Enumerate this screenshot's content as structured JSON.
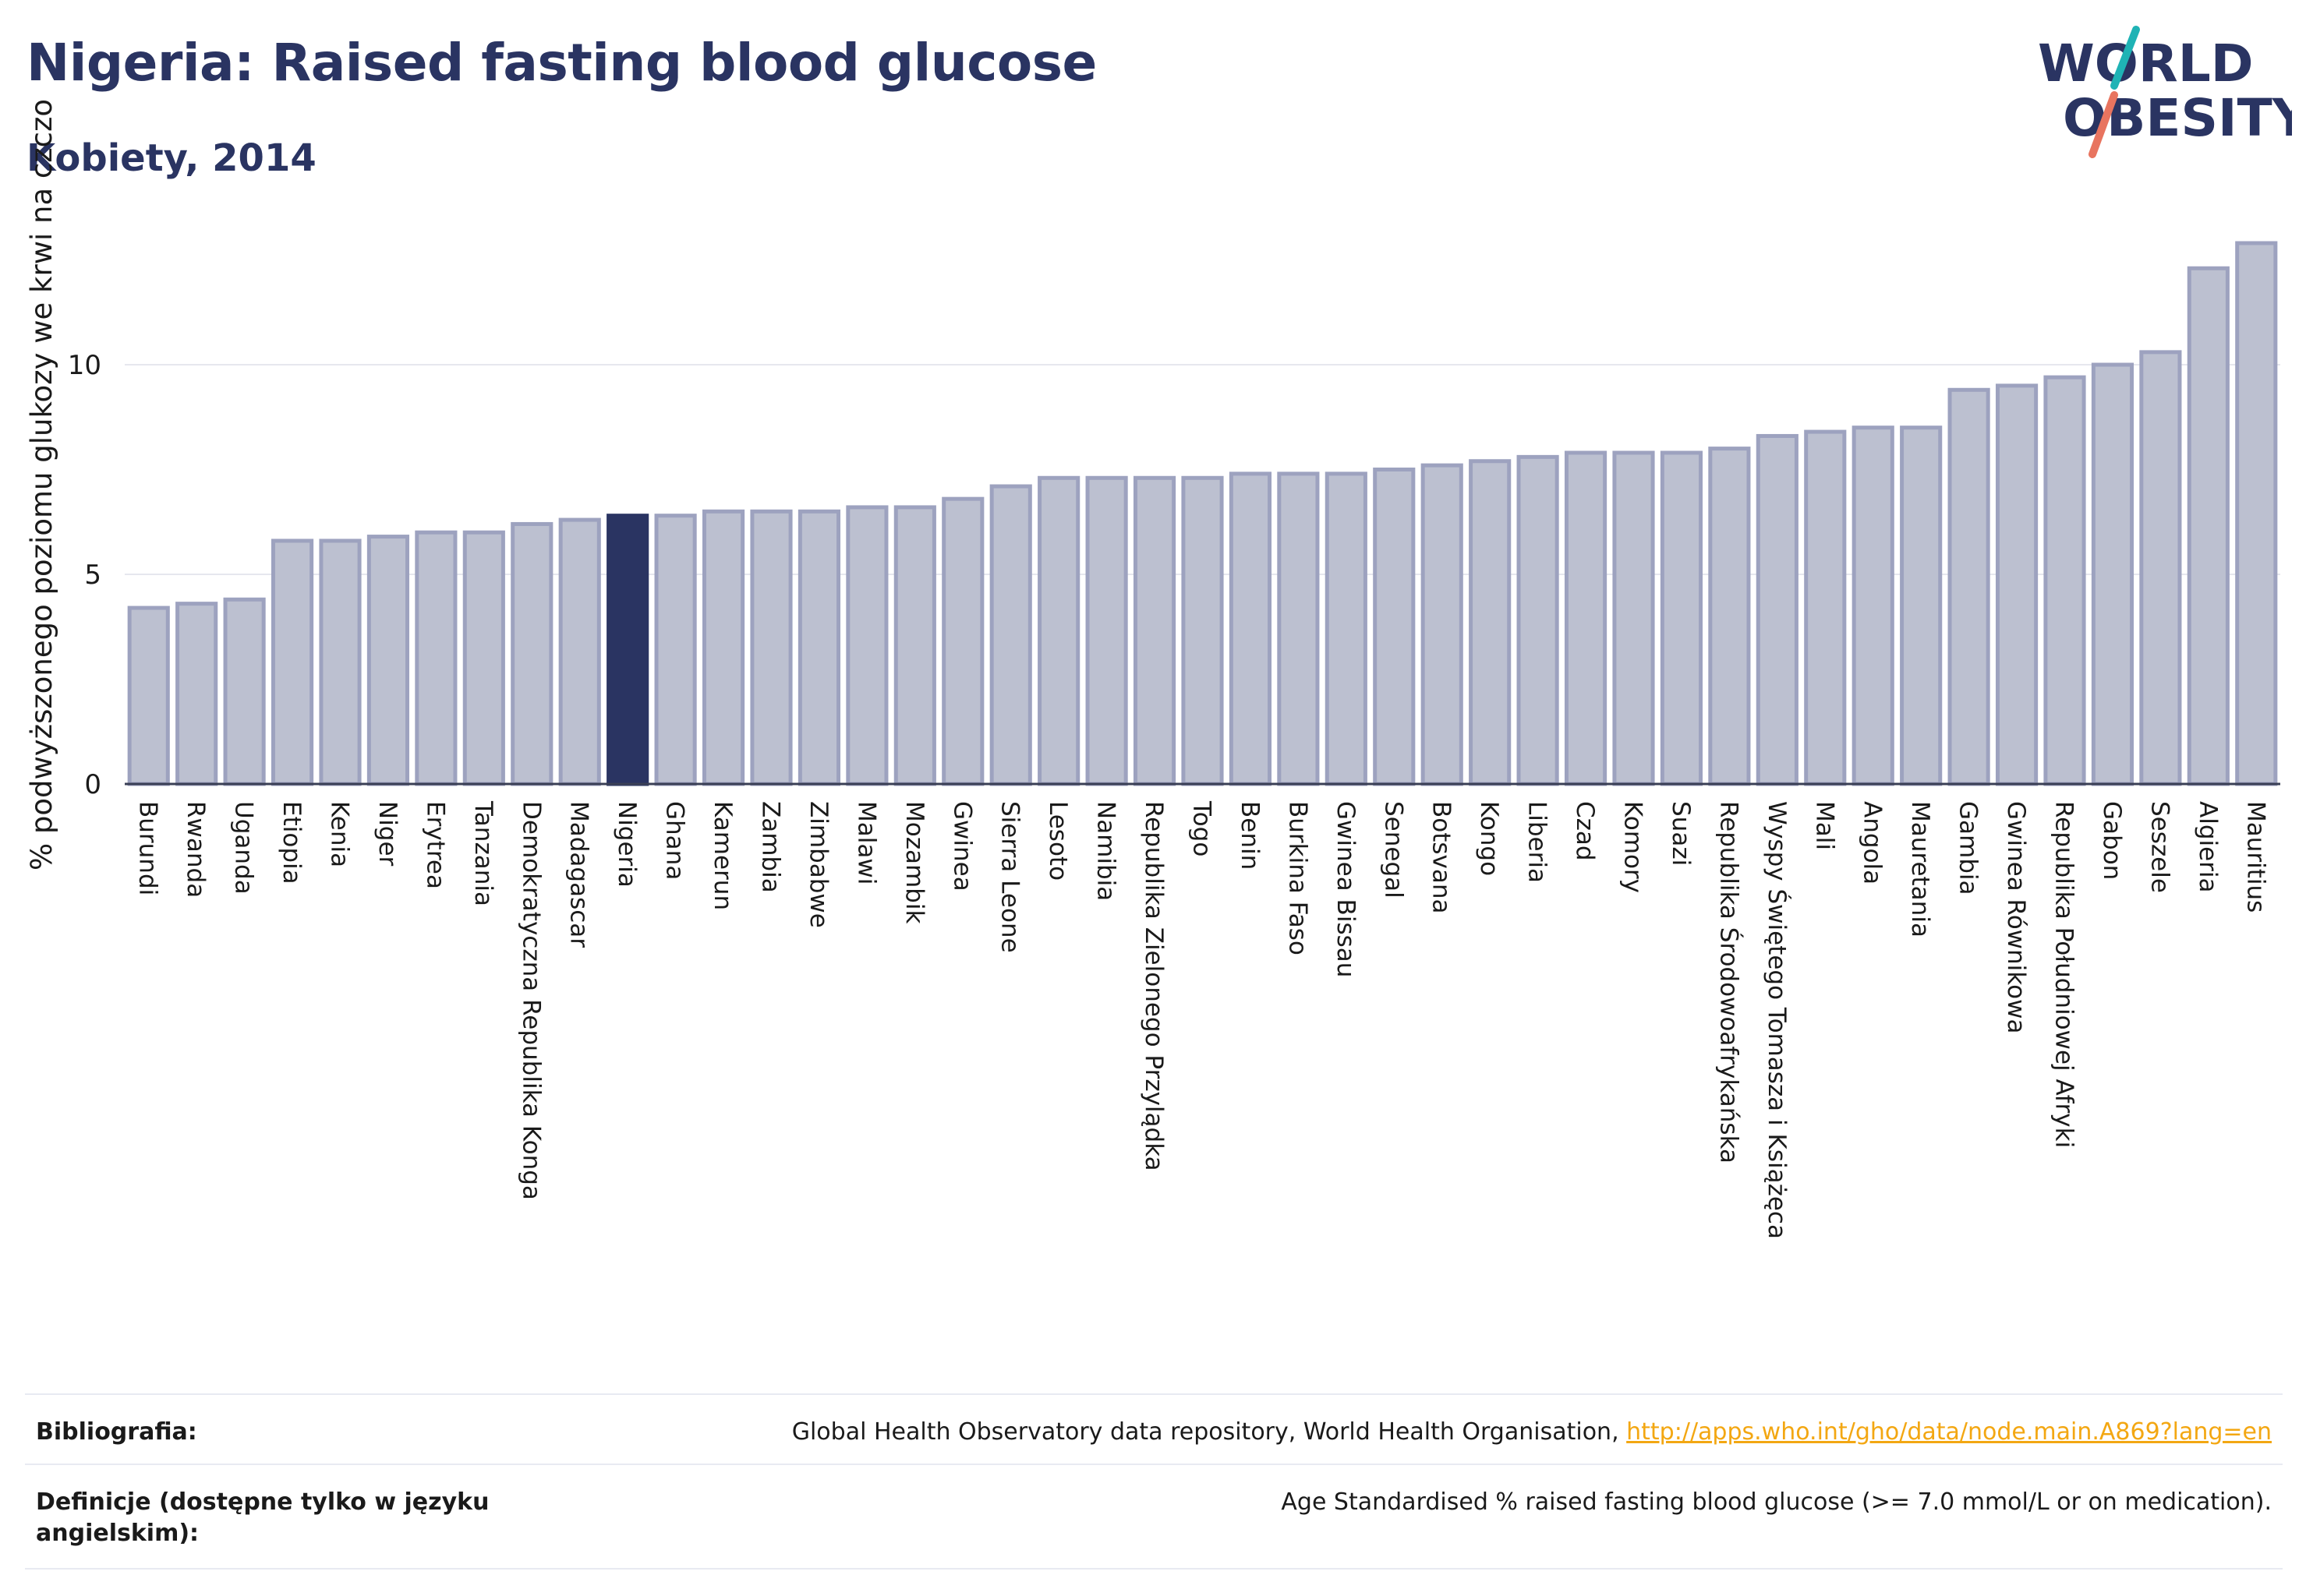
{
  "header": {
    "title": "Nigeria: Raised fasting blood glucose",
    "subtitle": "Kobiety, 2014"
  },
  "logo": {
    "line1": "WORLD",
    "line2": "OBESITY",
    "colors": {
      "text": "#2a3462",
      "accent_teal": "#1fb3b5",
      "accent_coral": "#e8745f"
    }
  },
  "chart_data": {
    "type": "bar",
    "ylabel": "% podwyższonego poziomu glukozy we krwi na czczo",
    "xlabel": "",
    "ylim": [
      0,
      13.5
    ],
    "yticks": [
      0,
      5,
      10
    ],
    "grid": true,
    "highlight": "Nigeria",
    "colors": {
      "bar": "#bcc0d0",
      "bar_edge": "#9da2bf",
      "highlight": "#2a3462"
    },
    "categories": [
      "Burundi",
      "Rwanda",
      "Uganda",
      "Etiopia",
      "Kenia",
      "Niger",
      "Erytrea",
      "Tanzania",
      "Demokratyczna Republika Konga",
      "Madagascar",
      "Nigeria",
      "Ghana",
      "Kamerun",
      "Zambia",
      "Zimbabwe",
      "Malawi",
      "Mozambik",
      "Gwinea",
      "Sierra Leone",
      "Lesoto",
      "Namibia",
      "Republika Zielonego Przylądka",
      "Togo",
      "Benin",
      "Burkina Faso",
      "Gwinea Bissau",
      "Senegal",
      "Botsvana",
      "Kongo",
      "Liberia",
      "Czad",
      "Komory",
      "Suazi",
      "Republika Środowoafrykańska",
      "Wyspy Świętego Tomasza i Książęca",
      "Mali",
      "Angola",
      "Mauretania",
      "Gambia",
      "Gwinea Równikowa",
      "Republika Południowej Afryki",
      "Gabon",
      "Seszele",
      "Algieria",
      "Mauritius"
    ],
    "values": [
      4.2,
      4.3,
      4.4,
      5.8,
      5.8,
      5.9,
      6.0,
      6.0,
      6.2,
      6.3,
      6.4,
      6.4,
      6.5,
      6.5,
      6.5,
      6.6,
      6.6,
      6.8,
      7.1,
      7.3,
      7.3,
      7.3,
      7.3,
      7.4,
      7.4,
      7.4,
      7.5,
      7.6,
      7.7,
      7.8,
      7.9,
      7.9,
      7.9,
      8.0,
      8.3,
      8.4,
      8.5,
      8.5,
      9.4,
      9.5,
      9.7,
      10.0,
      10.3,
      12.3,
      12.9
    ]
  },
  "footer": {
    "bibliography_label": "Bibliografia:",
    "bibliography_text": "Global Health Observatory data repository, World Health Organisation, ",
    "bibliography_link": "http://apps.who.int/gho/data/node.main.A869?lang=en",
    "definitions_label": "Definicje (dostępne tylko w języku angielskim):",
    "definitions_text": "Age Standardised % raised fasting blood glucose (>= 7.0 mmol/L or on medication)."
  }
}
